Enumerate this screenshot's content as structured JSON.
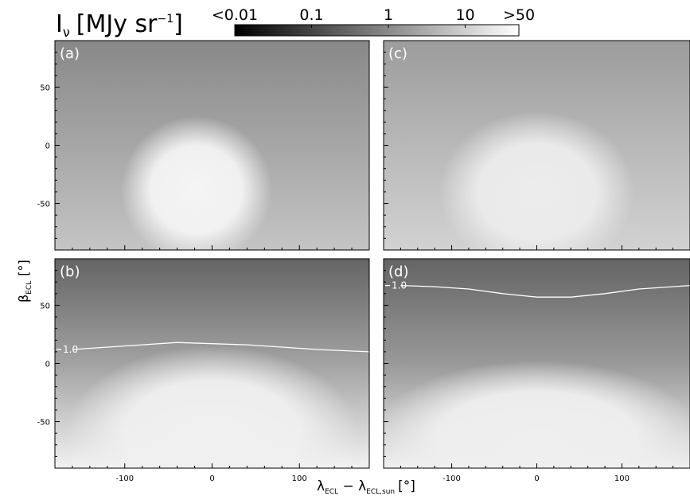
{
  "chart_data": {
    "type": "heatmap",
    "colorbar": {
      "label": "I",
      "label_sub": "ν",
      "unit_prefix": "[MJy sr",
      "unit_exp": "−1",
      "unit_suffix": "]",
      "ticks": [
        "<0.01",
        "0.1",
        "1",
        "10",
        ">50"
      ],
      "scale": "log",
      "range": [
        0.01,
        50
      ],
      "colormap": "grayscale (black → white)"
    },
    "xlabel": {
      "main": "λ",
      "sub1": "ECL",
      "minus": " − ",
      "main2": "λ",
      "sub2": "ECL,sun",
      "unit": "[°]"
    },
    "ylabel": {
      "main": "β",
      "sub": "ECL",
      "unit": "[°]"
    },
    "xlim": [
      -180,
      180
    ],
    "ylim": [
      -90,
      90
    ],
    "xticks": [
      "-100",
      "0",
      "100"
    ],
    "yticks": [
      "50",
      "0",
      "-50"
    ],
    "x_tick_values": [
      -100,
      0,
      100
    ],
    "y_tick_values": [
      50,
      0,
      -50
    ],
    "panels": [
      {
        "label": "(a)",
        "bg_top": "#888888",
        "bg_mid": "#a6a6a6",
        "bg_bottom": "#c4c4c4",
        "blob": {
          "cx": -18,
          "cy": -38,
          "rx": 62,
          "ry": 42,
          "color": "#f4f4f4"
        },
        "show_yticks": true,
        "show_xticks": false,
        "contour": null
      },
      {
        "label": "(c)",
        "bg_top": "#9c9c9c",
        "bg_mid": "#b8b8b8",
        "bg_bottom": "#d2d2d2",
        "blob": {
          "cx": 0,
          "cy": -40,
          "rx": 82,
          "ry": 46,
          "color": "#ececec"
        },
        "show_yticks": false,
        "show_xticks": false,
        "contour": null
      },
      {
        "label": "(b)",
        "bg_top": "#646464",
        "bg_mid": "#a2a2a2",
        "bg_bottom": "#f2f2f2",
        "blob": {
          "cx": 0,
          "cy": -60,
          "rx": 120,
          "ry": 50,
          "color": "#f0f0f0"
        },
        "show_yticks": true,
        "show_xticks": true,
        "contour": {
          "level_label": "1.0",
          "x": [
            -160,
            -120,
            -80,
            -40,
            0,
            40,
            80,
            120,
            180
          ],
          "y": [
            12,
            14,
            16,
            18,
            17,
            16,
            14,
            12,
            10
          ]
        }
      },
      {
        "label": "(d)",
        "bg_top": "#646464",
        "bg_mid": "#999999",
        "bg_bottom": "#f0f0f0",
        "blob": {
          "cx": 0,
          "cy": -65,
          "rx": 140,
          "ry": 45,
          "color": "#efefef"
        },
        "show_yticks": false,
        "show_xticks": true,
        "contour": {
          "level_label": "1.0",
          "x": [
            -160,
            -120,
            -80,
            -40,
            0,
            40,
            80,
            120,
            180
          ],
          "y": [
            67,
            66,
            64,
            60,
            57,
            57,
            60,
            64,
            67
          ]
        }
      }
    ]
  }
}
